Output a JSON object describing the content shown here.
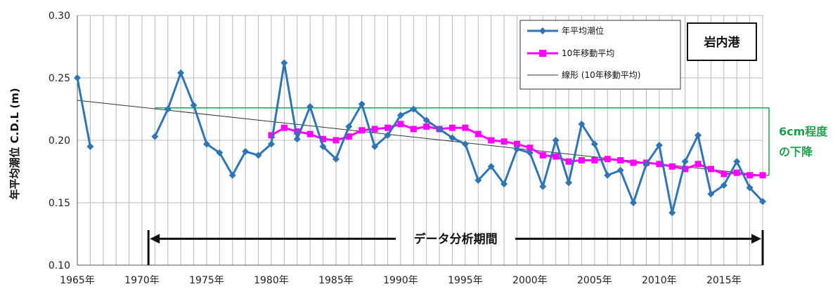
{
  "chart_data": {
    "type": "line",
    "ylabel": "年平均潮位 C.D.L (m)",
    "ylim": [
      0.1,
      0.3
    ],
    "yticks": [
      "0.30",
      "0.25",
      "0.20",
      "0.15",
      "0.10"
    ],
    "xlim": [
      1965,
      2018
    ],
    "xticks": [
      {
        "year": 1965,
        "label": "1965年"
      },
      {
        "year": 1970,
        "label": "1970年"
      },
      {
        "year": 1975,
        "label": "1975年"
      },
      {
        "year": 1980,
        "label": "1980年"
      },
      {
        "year": 1985,
        "label": "1985年"
      },
      {
        "year": 1990,
        "label": "1990年"
      },
      {
        "year": 1995,
        "label": "1995年"
      },
      {
        "year": 2000,
        "label": "2000年"
      },
      {
        "year": 2005,
        "label": "2005年"
      },
      {
        "year": 2010,
        "label": "2010年"
      },
      {
        "year": 2015,
        "label": "2015年"
      }
    ],
    "grid": true,
    "legend_position": "top-right",
    "station": "岩内港",
    "series": [
      {
        "name": "年平均潮位",
        "color": "#2e75b6",
        "marker": "diamond",
        "segments": [
          [
            [
              1965,
              0.25
            ],
            [
              1966,
              0.195
            ]
          ],
          [
            [
              1971,
              0.203
            ],
            [
              1972,
              0.225
            ],
            [
              1973,
              0.254
            ],
            [
              1974,
              0.228
            ],
            [
              1975,
              0.197
            ],
            [
              1976,
              0.19
            ],
            [
              1977,
              0.172
            ],
            [
              1978,
              0.191
            ],
            [
              1979,
              0.188
            ],
            [
              1980,
              0.197
            ],
            [
              1981,
              0.262
            ],
            [
              1982,
              0.201
            ],
            [
              1983,
              0.227
            ],
            [
              1984,
              0.195
            ],
            [
              1985,
              0.185
            ],
            [
              1986,
              0.211
            ],
            [
              1987,
              0.229
            ],
            [
              1988,
              0.195
            ],
            [
              1989,
              0.204
            ],
            [
              1990,
              0.22
            ],
            [
              1991,
              0.225
            ],
            [
              1992,
              0.216
            ],
            [
              1993,
              0.209
            ],
            [
              1994,
              0.202
            ],
            [
              1995,
              0.197
            ],
            [
              1996,
              0.168
            ],
            [
              1997,
              0.179
            ],
            [
              1998,
              0.165
            ],
            [
              1999,
              0.193
            ],
            [
              2000,
              0.19
            ],
            [
              2001,
              0.163
            ],
            [
              2002,
              0.2
            ],
            [
              2003,
              0.166
            ],
            [
              2004,
              0.213
            ],
            [
              2005,
              0.197
            ],
            [
              2006,
              0.172
            ],
            [
              2007,
              0.176
            ],
            [
              2008,
              0.15
            ],
            [
              2009,
              0.181
            ],
            [
              2010,
              0.196
            ],
            [
              2011,
              0.142
            ],
            [
              2012,
              0.183
            ],
            [
              2013,
              0.204
            ],
            [
              2014,
              0.157
            ],
            [
              2015,
              0.164
            ],
            [
              2016,
              0.183
            ],
            [
              2017,
              0.162
            ],
            [
              2018,
              0.151
            ]
          ]
        ]
      },
      {
        "name": "10年移動平均",
        "color": "#ff00ff",
        "marker": "square",
        "points": [
          [
            1980,
            0.204
          ],
          [
            1981,
            0.21
          ],
          [
            1982,
            0.207
          ],
          [
            1983,
            0.205
          ],
          [
            1984,
            0.201
          ],
          [
            1985,
            0.2
          ],
          [
            1986,
            0.203
          ],
          [
            1987,
            0.208
          ],
          [
            1988,
            0.209
          ],
          [
            1989,
            0.21
          ],
          [
            1990,
            0.213
          ],
          [
            1991,
            0.209
          ],
          [
            1992,
            0.211
          ],
          [
            1993,
            0.209
          ],
          [
            1994,
            0.21
          ],
          [
            1995,
            0.21
          ],
          [
            1996,
            0.205
          ],
          [
            1997,
            0.2
          ],
          [
            1998,
            0.199
          ],
          [
            1999,
            0.197
          ],
          [
            2000,
            0.194
          ],
          [
            2001,
            0.188
          ],
          [
            2002,
            0.187
          ],
          [
            2003,
            0.183
          ],
          [
            2004,
            0.184
          ],
          [
            2005,
            0.184
          ],
          [
            2006,
            0.185
          ],
          [
            2007,
            0.184
          ],
          [
            2008,
            0.182
          ],
          [
            2009,
            0.182
          ],
          [
            2010,
            0.181
          ],
          [
            2011,
            0.179
          ],
          [
            2012,
            0.177
          ],
          [
            2013,
            0.181
          ],
          [
            2014,
            0.177
          ],
          [
            2015,
            0.173
          ],
          [
            2016,
            0.174
          ],
          [
            2017,
            0.172
          ],
          [
            2018,
            0.172
          ]
        ]
      },
      {
        "name": "線形 (10年移動平均)",
        "color": "#333333",
        "marker": "none",
        "points": [
          [
            1965,
            0.232
          ],
          [
            2018,
            0.172
          ]
        ]
      }
    ],
    "annotations": {
      "bracket": {
        "from_year": 1971,
        "to_year": 2018,
        "top": 0.226,
        "bottom": 0.172,
        "color": "#1aa34a"
      },
      "bracket_label": [
        "6cm程度",
        "の下降"
      ],
      "period_arrow": {
        "from_year": 1970.5,
        "to_year": 2018,
        "y": 0.12,
        "label": "データ分析期間"
      }
    }
  }
}
